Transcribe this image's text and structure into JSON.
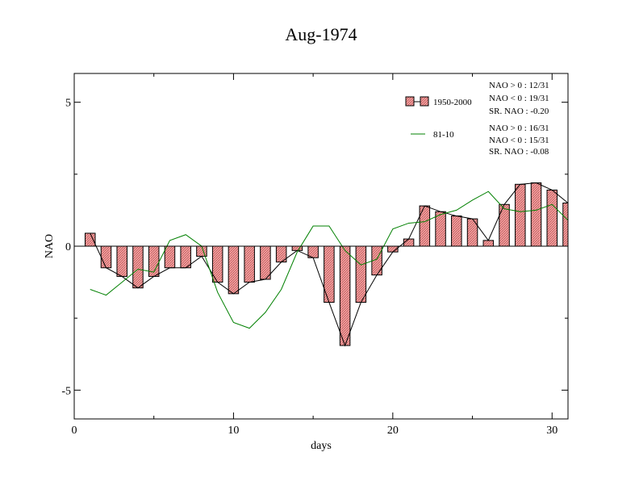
{
  "chart_data": {
    "type": "bar",
    "title": "Aug-1974",
    "xlabel": "days",
    "ylabel": "NAO",
    "xlim": [
      0,
      31
    ],
    "ylim": [
      -6,
      6
    ],
    "x_ticks": [
      0,
      10,
      20,
      30
    ],
    "x_tick_labels": [
      "0",
      "10",
      "20",
      "30"
    ],
    "y_ticks": [
      -5,
      0,
      5
    ],
    "y_tick_labels": [
      "-5",
      "0",
      "5"
    ],
    "grid": false,
    "legend_position": "top-right",
    "x": [
      1,
      2,
      3,
      4,
      5,
      6,
      7,
      8,
      9,
      10,
      11,
      12,
      13,
      14,
      15,
      16,
      17,
      18,
      19,
      20,
      21,
      22,
      23,
      24,
      25,
      26,
      27,
      28,
      29,
      30,
      31
    ],
    "series": [
      {
        "name": "1950-2000",
        "kind": "bar",
        "color": "#f28c8c",
        "values": [
          0.45,
          -0.75,
          -1.05,
          -1.45,
          -1.05,
          -0.75,
          -0.75,
          -0.35,
          -1.25,
          -1.65,
          -1.25,
          -1.15,
          -0.55,
          -0.15,
          -0.4,
          -1.95,
          -3.45,
          -1.95,
          -1.0,
          -0.2,
          0.25,
          1.4,
          1.2,
          1.05,
          0.95,
          0.2,
          1.45,
          2.15,
          2.2,
          1.95,
          1.5
        ]
      },
      {
        "name": "81-10",
        "kind": "line",
        "color": "#008000",
        "values": [
          -1.5,
          -1.7,
          -1.25,
          -0.8,
          -0.9,
          0.2,
          0.4,
          0.0,
          -1.6,
          -2.65,
          -2.85,
          -2.3,
          -1.5,
          -0.2,
          0.7,
          0.7,
          -0.15,
          -0.65,
          -0.45,
          0.6,
          0.8,
          0.85,
          1.1,
          1.25,
          1.6,
          1.9,
          1.3,
          1.2,
          1.25,
          1.45,
          0.9
        ]
      }
    ],
    "stats": {
      "s1950": [
        "NAO > 0 : 12/31",
        "NAO < 0 : 19/31",
        "SR. NAO : -0.20"
      ],
      "s8110": [
        "NAO > 0 : 16/31",
        "NAO < 0 : 15/31",
        "SR. NAO : -0.08"
      ]
    }
  }
}
